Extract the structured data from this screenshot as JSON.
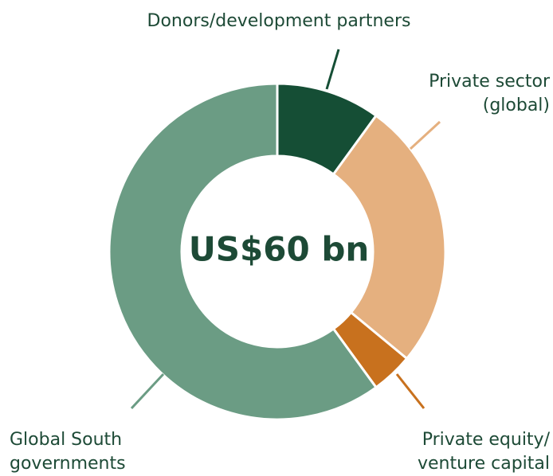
{
  "chart_data": {
    "type": "donut",
    "center_label": "US$60 bn",
    "categories": [
      "Donors/development partners",
      "Private sector (global)",
      "Private equity/ venture capital",
      "Global South governments"
    ],
    "values": [
      10,
      26,
      4,
      60
    ],
    "colors": [
      "#154e35",
      "#e5b07f",
      "#c8711e",
      "#6b9c84"
    ]
  }
}
